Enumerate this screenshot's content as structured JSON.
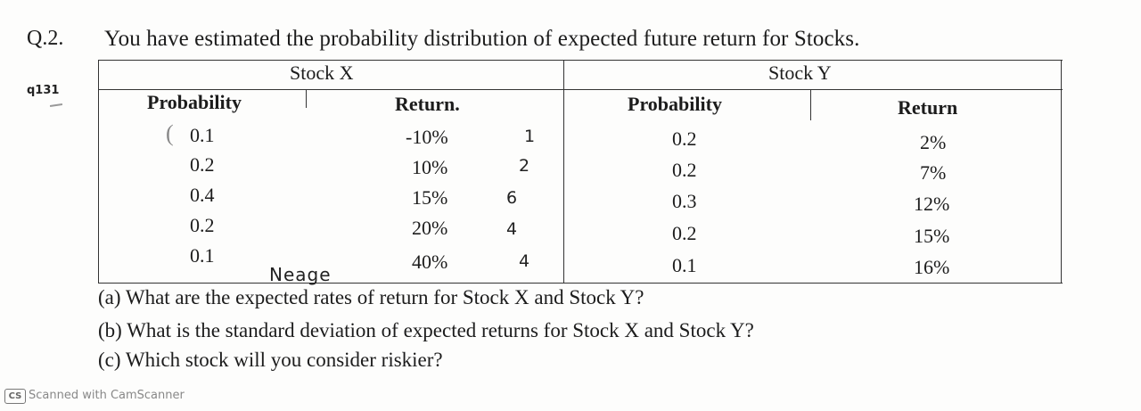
{
  "question": {
    "number": "Q.2.",
    "text": "You have estimated the probability distribution of expected future return for Stocks.",
    "tag": "q131"
  },
  "table": {
    "groups": [
      "Stock X",
      "Stock Y"
    ],
    "columns": [
      "Probability",
      "Return.",
      "Probability",
      "Return"
    ],
    "rows": [
      {
        "x_prob": "0.1",
        "x_ret": "-10%",
        "y_prob": "0.2",
        "y_ret": "2%"
      },
      {
        "x_prob": "0.2",
        "x_ret": "10%",
        "y_prob": "0.2",
        "y_ret": "7%"
      },
      {
        "x_prob": "0.4",
        "x_ret": "15%",
        "y_prob": "0.3",
        "y_ret": "12%"
      },
      {
        "x_prob": "0.2",
        "x_ret": "20%",
        "y_prob": "0.2",
        "y_ret": "15%"
      },
      {
        "x_prob": "0.1",
        "x_ret": "40%",
        "y_prob": "0.1",
        "y_ret": "16%"
      }
    ],
    "handwritten_marks": [
      "1",
      "2",
      "6",
      "4",
      "4"
    ],
    "handwritten_note": "Neage"
  },
  "parts": [
    "(a) What are the expected rates of return for Stock X and Stock Y?",
    "(b) What is the standard deviation of expected returns for Stock X and Stock Y?",
    "(c) Which stock will you consider riskier?"
  ],
  "footer": {
    "badge": "CS",
    "text": "Scanned with CamScanner"
  }
}
